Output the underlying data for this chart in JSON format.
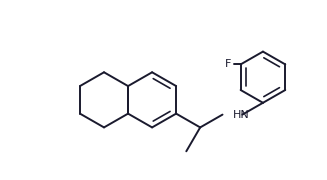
{
  "bg_color": "#ffffff",
  "line_color": "#1a1a2e",
  "lw": 1.4,
  "text_color": "#1a1a2e",
  "F_label": "F",
  "HN_label": "HN",
  "figsize": [
    3.27,
    1.8
  ],
  "dpi": 100
}
